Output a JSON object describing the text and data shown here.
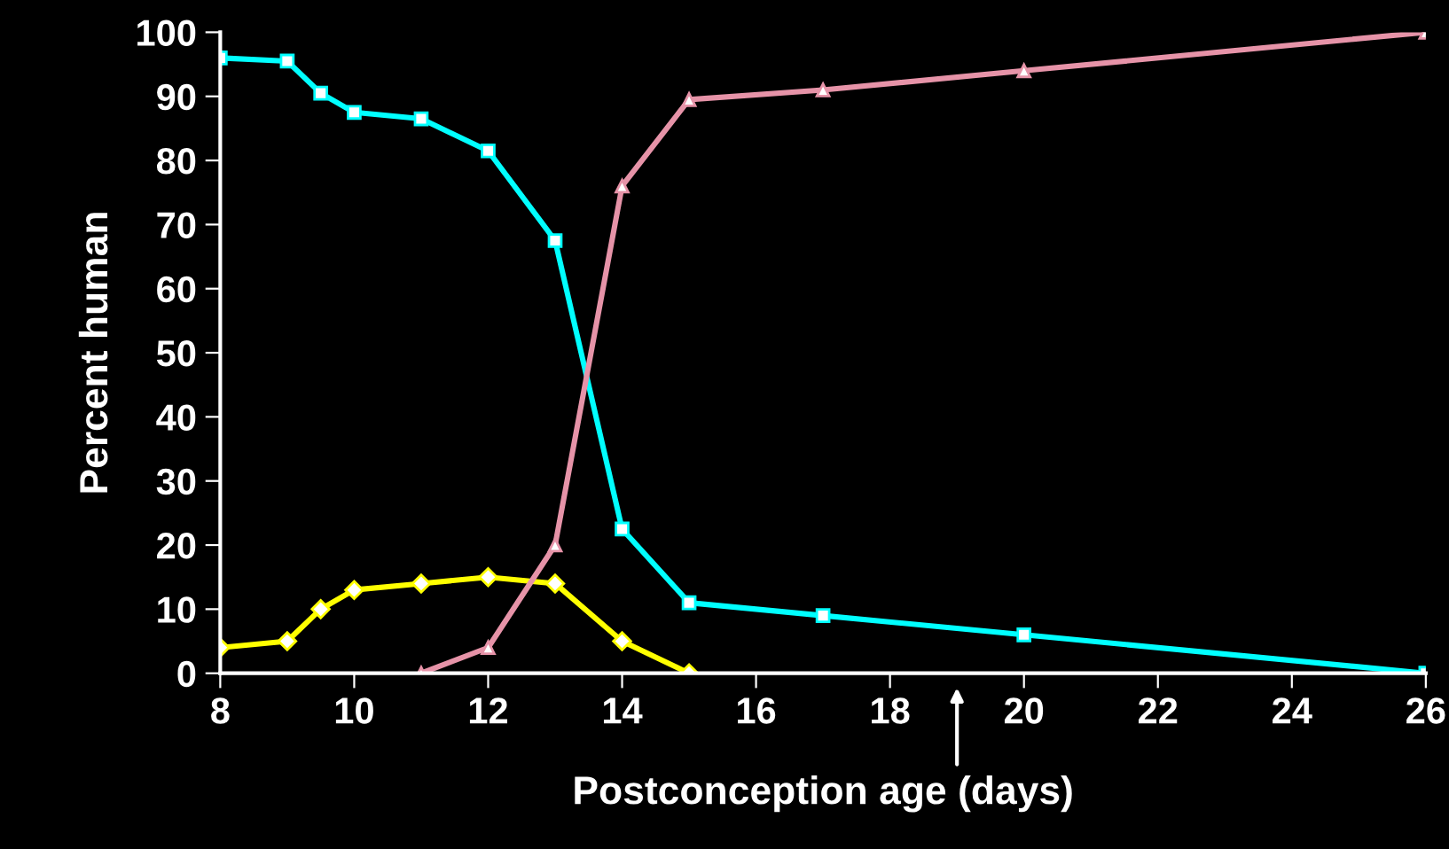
{
  "chart_data": {
    "type": "line",
    "xlabel": "Postconception age (days)",
    "ylabel": "Percent human",
    "xlim": [
      8,
      26
    ],
    "xticks": [
      8,
      10,
      12,
      14,
      16,
      18,
      20,
      22,
      24,
      26
    ],
    "ylim": [
      0,
      100
    ],
    "yticks": [
      0,
      10,
      20,
      30,
      40,
      50,
      60,
      70,
      80,
      90,
      100
    ],
    "grid": false,
    "legend": false,
    "series": [
      {
        "color": "#00ffff",
        "marker": "square",
        "x": [
          8,
          9,
          9.5,
          10,
          11,
          12,
          13,
          14,
          15,
          17,
          20,
          26
        ],
        "values": [
          96,
          95.5,
          90.5,
          87.5,
          86.5,
          81.5,
          67.5,
          22.5,
          11,
          9,
          6,
          0
        ]
      },
      {
        "color": "#ffff00",
        "marker": "diamond",
        "x": [
          8,
          9,
          9.5,
          10,
          11,
          12,
          13,
          14,
          15
        ],
        "values": [
          4,
          5,
          10,
          13,
          14,
          15,
          14,
          5,
          0
        ]
      },
      {
        "color": "#e693a8",
        "marker": "triangle",
        "x": [
          11,
          12,
          13,
          14,
          15,
          17,
          20,
          26
        ],
        "values": [
          0,
          4,
          20,
          76,
          89.5,
          91,
          94,
          100
        ]
      }
    ]
  }
}
